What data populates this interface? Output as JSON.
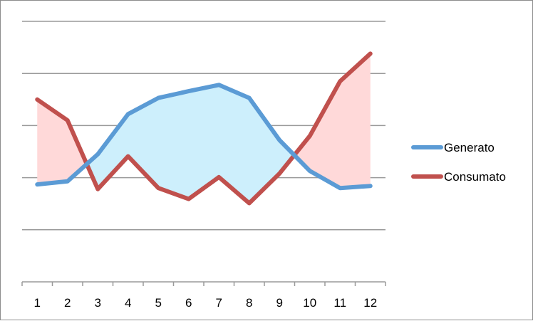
{
  "chart_data": {
    "type": "line",
    "title": "",
    "xlabel": "",
    "ylabel": "",
    "categories": [
      "1",
      "2",
      "3",
      "4",
      "5",
      "6",
      "7",
      "8",
      "9",
      "10",
      "11",
      "12"
    ],
    "series": [
      {
        "name": "Generato",
        "color": "#5b9bd5",
        "values": [
          -0.13,
          -0.07,
          0.45,
          1.22,
          1.53,
          1.66,
          1.78,
          1.53,
          0.72,
          0.13,
          -0.2,
          -0.16
        ]
      },
      {
        "name": "Consumato",
        "color": "#c0504d",
        "values": [
          1.5,
          1.1,
          -0.22,
          0.41,
          -0.2,
          -0.41,
          0.01,
          -0.49,
          0.08,
          0.8,
          1.85,
          2.38
        ]
      }
    ],
    "fill_colors": {
      "generato_above": "#cdeffc",
      "consumato_above": "#ffd9d9"
    },
    "ylim": [
      -2,
      3
    ],
    "y_gridlines": [
      -1,
      0,
      1,
      2,
      3
    ],
    "y_tick_labels_shown": false,
    "legend_position": "right"
  }
}
